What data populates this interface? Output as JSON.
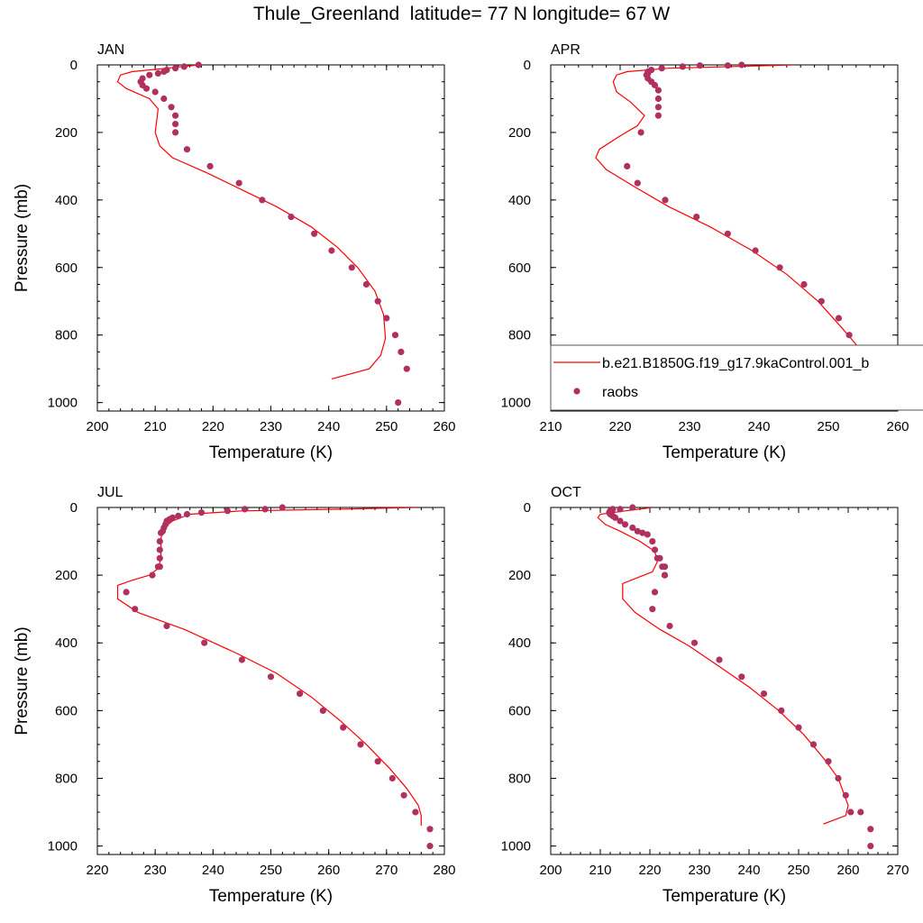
{
  "title": "Thule_Greenland  latitude= 77 N longitude= 67 W",
  "colors": {
    "model": "#ff0000",
    "obs": "#b03060",
    "axis": "#000000"
  },
  "legend": {
    "model_label": "b.e21.B1850G.f19_g17.9kaControl.001_b",
    "obs_label": "raobs",
    "placement": "inside APR panel, lower right"
  },
  "chart_data": [
    {
      "panel": "JAN",
      "type": "line",
      "xlabel": "Temperature (K)",
      "ylabel": "Pressure (mb)",
      "xlim": [
        200,
        260
      ],
      "ylim": [
        1025,
        0
      ],
      "y_reversed": true,
      "xticks": [
        "200",
        "210",
        "220",
        "230",
        "240",
        "250",
        "260"
      ],
      "yticks": [
        "0",
        "200",
        "400",
        "600",
        "800",
        "1000"
      ],
      "series": [
        {
          "name": "b.e21.B1850G.f19_g17.9kaControl.001_b",
          "style": "line",
          "x": [
            217.5,
            212.0,
            206.0,
            204.0,
            203.5,
            205.0,
            209.0,
            210.5,
            210.3,
            210.0,
            210.8,
            213.0,
            219.0,
            225.0,
            231.0,
            237.0,
            241.5,
            245.0,
            248.0,
            249.5,
            249.8,
            249.0,
            247.0,
            240.5
          ],
          "y": [
            0,
            10,
            20,
            30,
            50,
            70,
            100,
            130,
            160,
            200,
            240,
            275,
            320,
            370,
            420,
            480,
            540,
            600,
            670,
            740,
            810,
            860,
            900,
            930
          ]
        },
        {
          "name": "raobs",
          "style": "markers",
          "x": [
            217.5,
            215.0,
            213.5,
            212.0,
            211.5,
            210.5,
            209.0,
            207.8,
            207.5,
            207.8,
            208.5,
            210.0,
            211.5,
            212.8,
            213.5,
            213.5,
            213.5,
            215.5,
            219.5,
            224.5,
            228.5,
            233.5,
            237.5,
            240.5,
            244.0,
            246.5,
            248.5,
            250.0,
            251.5,
            252.5,
            253.5,
            252.0
          ],
          "y": [
            0,
            5,
            10,
            15,
            20,
            25,
            30,
            40,
            50,
            60,
            70,
            80,
            100,
            125,
            150,
            175,
            200,
            250,
            300,
            350,
            400,
            450,
            500,
            550,
            600,
            650,
            700,
            750,
            800,
            850,
            900,
            1000
          ]
        }
      ]
    },
    {
      "panel": "APR",
      "type": "line",
      "xlabel": "Temperature (K)",
      "ylabel": "",
      "xlim": [
        210,
        260
      ],
      "ylim": [
        1025,
        0
      ],
      "y_reversed": true,
      "xticks": [
        "210",
        "220",
        "230",
        "240",
        "250",
        "260"
      ],
      "yticks": [
        "0",
        "200",
        "400",
        "600",
        "800",
        "1000"
      ],
      "series": [
        {
          "name": "b.e21.B1850G.f19_g17.9kaControl.001_b",
          "style": "line",
          "x": [
            245.0,
            227.0,
            221.0,
            219.5,
            219.0,
            219.5,
            221.5,
            223.5,
            222.5,
            220.0,
            217.0,
            216.5,
            218.0,
            222.0,
            227.0,
            233.0,
            239.0,
            244.0,
            248.5,
            252.0,
            254.5,
            255.5,
            256.0,
            255.0,
            251.5
          ],
          "y": [
            0,
            10,
            20,
            30,
            50,
            80,
            110,
            150,
            180,
            210,
            250,
            275,
            310,
            360,
            420,
            480,
            550,
            620,
            700,
            780,
            840,
            870,
            900,
            920,
            940
          ]
        },
        {
          "name": "raobs",
          "style": "markers",
          "x": [
            237.5,
            235.5,
            231.5,
            229.0,
            226.0,
            224.5,
            224.0,
            224.0,
            223.8,
            224.0,
            224.5,
            225.0,
            225.5,
            225.5,
            225.5,
            225.5,
            223.0,
            221.0,
            222.5,
            226.5,
            231.0,
            235.5,
            239.5,
            243.0,
            246.5,
            249.0,
            251.5,
            253.0,
            254.0,
            255.0,
            256.0,
            257.0,
            257.0
          ],
          "y": [
            0,
            2,
            2,
            5,
            10,
            15,
            20,
            25,
            30,
            40,
            50,
            60,
            75,
            100,
            125,
            150,
            200,
            300,
            350,
            400,
            450,
            500,
            550,
            600,
            650,
            700,
            750,
            800,
            850,
            875,
            900,
            950,
            1000
          ]
        }
      ]
    },
    {
      "panel": "JUL",
      "type": "line",
      "xlabel": "Temperature (K)",
      "ylabel": "Pressure (mb)",
      "xlim": [
        220,
        280
      ],
      "ylim": [
        1025,
        0
      ],
      "y_reversed": true,
      "xticks": [
        "220",
        "230",
        "240",
        "250",
        "260",
        "270",
        "280"
      ],
      "yticks": [
        "0",
        "200",
        "400",
        "600",
        "800",
        "1000"
      ],
      "series": [
        {
          "name": "b.e21.B1850G.f19_g17.9kaControl.001_b",
          "style": "line",
          "x": [
            275.0,
            262.0,
            245.0,
            236.0,
            233.0,
            231.5,
            231.0,
            231.0,
            231.0,
            230.5,
            229.0,
            226.0,
            223.5,
            223.5,
            227.0,
            235.0,
            244.0,
            251.0,
            257.0,
            262.0,
            266.5,
            270.5,
            273.5,
            275.5,
            276.0,
            276.0
          ],
          "y": [
            0,
            5,
            10,
            20,
            40,
            60,
            90,
            120,
            150,
            180,
            200,
            215,
            230,
            270,
            310,
            360,
            430,
            490,
            560,
            630,
            700,
            770,
            830,
            880,
            910,
            940
          ]
        },
        {
          "name": "raobs",
          "style": "markers",
          "x": [
            252.0,
            249.0,
            245.5,
            242.5,
            238.0,
            235.5,
            234.0,
            233.0,
            232.5,
            232.0,
            231.8,
            231.5,
            231.3,
            231.0,
            230.8,
            230.8,
            230.8,
            230.8,
            230.5,
            229.5,
            225.0,
            226.5,
            232.0,
            238.5,
            245.0,
            250.0,
            255.0,
            259.0,
            262.5,
            265.5,
            268.5,
            271.0,
            273.0,
            275.0,
            277.5,
            277.5
          ],
          "y": [
            0,
            5,
            5,
            10,
            15,
            20,
            25,
            30,
            35,
            40,
            50,
            60,
            70,
            75,
            100,
            125,
            150,
            175,
            175,
            200,
            250,
            300,
            350,
            400,
            450,
            500,
            550,
            600,
            650,
            700,
            750,
            800,
            850,
            900,
            950,
            1000
          ]
        }
      ]
    },
    {
      "panel": "OCT",
      "type": "line",
      "xlabel": "Temperature (K)",
      "ylabel": "",
      "xlim": [
        200,
        270
      ],
      "ylim": [
        1025,
        0
      ],
      "y_reversed": true,
      "xticks": [
        "200",
        "210",
        "220",
        "230",
        "240",
        "250",
        "260",
        "270"
      ],
      "yticks": [
        "0",
        "200",
        "400",
        "600",
        "800",
        "1000"
      ],
      "series": [
        {
          "name": "b.e21.B1850G.f19_g17.9kaControl.001_b",
          "style": "line",
          "x": [
            220.5,
            215.0,
            210.0,
            209.5,
            211.0,
            214.0,
            218.0,
            221.0,
            221.5,
            220.5,
            217.0,
            214.5,
            214.5,
            217.0,
            222.0,
            228.0,
            234.0,
            240.0,
            246.0,
            251.0,
            255.0,
            258.0,
            260.0,
            259.5,
            255.0
          ],
          "y": [
            0,
            10,
            20,
            30,
            50,
            70,
            100,
            130,
            160,
            190,
            210,
            225,
            270,
            310,
            360,
            410,
            470,
            530,
            600,
            670,
            740,
            800,
            880,
            910,
            935
          ]
        },
        {
          "name": "raobs",
          "style": "markers",
          "x": [
            216.5,
            214.0,
            212.5,
            212.0,
            211.8,
            212.0,
            212.5,
            213.0,
            214.0,
            215.0,
            216.5,
            217.5,
            218.5,
            219.5,
            220.5,
            221.0,
            221.5,
            222.0,
            222.5,
            223.0,
            223.0,
            223.0,
            221.0,
            220.5,
            224.0,
            229.0,
            234.0,
            238.5,
            243.0,
            246.5,
            250.0,
            253.0,
            256.0,
            258.0,
            259.5,
            260.5,
            262.5,
            264.5,
            264.5
          ],
          "y": [
            0,
            5,
            5,
            10,
            15,
            20,
            25,
            30,
            40,
            50,
            60,
            70,
            75,
            80,
            100,
            125,
            150,
            150,
            175,
            175,
            200,
            200,
            250,
            300,
            350,
            400,
            450,
            500,
            550,
            600,
            650,
            700,
            750,
            800,
            850,
            900,
            900,
            950,
            1000
          ]
        }
      ]
    }
  ]
}
